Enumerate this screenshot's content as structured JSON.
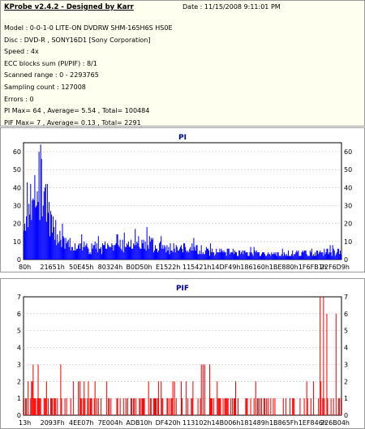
{
  "header": {
    "app_title": "KProbe v2.4.2 - Designed by Karr",
    "date": "Date : 11/15/2008 9:11:01 PM"
  },
  "info_lines": [
    "Model : 0-0-1-0 LITE-ON DVDRW SHM-165H6S HS0E",
    "Disc : DVD-R ,  SONY16D1 [Sony Corporation]",
    "Speed : 4x",
    "ECC blocks sum (PI/PIF) : 8/1",
    "Scanned range : 0 - 2293765",
    "Sampling count : 127008",
    "Errors : 0",
    "PI Max= 64 , Average= 5.54 , Total= 100484",
    "PIF Max= 7 , Average= 0.13 , Total= 2291"
  ],
  "colors": {
    "pi_bars": "#0000ff",
    "pif_bars": "#ff0000",
    "chart_title": "#00008b",
    "grid": "#c8c8c8",
    "info_bg": "#fffff0"
  },
  "chart_data": [
    {
      "type": "bar",
      "title": "PI",
      "ylim": [
        0,
        65
      ],
      "yticks": [
        0,
        10,
        20,
        30,
        40,
        50,
        60
      ],
      "xticks": [
        "80h",
        "21651h",
        "50E45h",
        "80324h",
        "B0D50h",
        "E1522h",
        "115421h",
        "14DF49h",
        "186160h",
        "1BE880h",
        "1F6FB1h",
        "22F6D9h"
      ],
      "grid": true,
      "profile": [
        [
          0,
          18
        ],
        [
          0.02,
          40
        ],
        [
          0.05,
          60
        ],
        [
          0.06,
          64
        ],
        [
          0.075,
          45
        ],
        [
          0.09,
          25
        ],
        [
          0.11,
          15
        ],
        [
          0.16,
          10
        ],
        [
          0.22,
          9
        ],
        [
          0.3,
          10
        ],
        [
          0.38,
          13
        ],
        [
          0.45,
          8
        ],
        [
          0.52,
          9
        ],
        [
          0.6,
          6
        ],
        [
          0.7,
          5
        ],
        [
          0.8,
          4
        ],
        [
          0.9,
          5
        ],
        [
          1.0,
          6
        ]
      ],
      "series": [
        {
          "values": []
        }
      ]
    },
    {
      "type": "bar",
      "title": "PIF",
      "ylim": [
        0,
        7
      ],
      "yticks": [
        0,
        1,
        2,
        3,
        4,
        5,
        6,
        7
      ],
      "xticks": [
        "13h",
        "2093Fh",
        "4EE07h",
        "7E004h",
        "ADB10h",
        "DF420h",
        "113102h",
        "14B006h",
        "181489h",
        "1B865Fh",
        "1EF846h",
        "226B04h"
      ],
      "grid": true,
      "spikes": [
        [
          0.03,
          3
        ],
        [
          0.045,
          3
        ],
        [
          0.115,
          3
        ],
        [
          0.155,
          2
        ],
        [
          0.56,
          3
        ],
        [
          0.565,
          3
        ],
        [
          0.57,
          3
        ],
        [
          0.585,
          3
        ],
        [
          0.935,
          7
        ],
        [
          0.945,
          7
        ],
        [
          0.955,
          6
        ],
        [
          0.985,
          6
        ]
      ],
      "series": [
        {
          "values": []
        }
      ]
    }
  ]
}
